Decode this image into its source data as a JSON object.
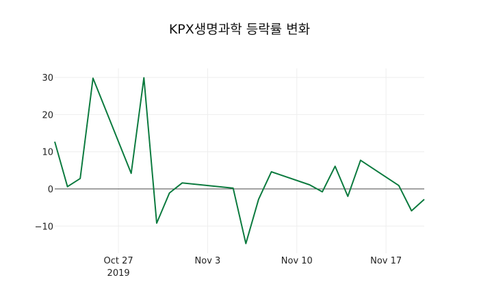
{
  "title": "KPX생명과학 등락률 변화",
  "colors": {
    "line": "#0b7a3e",
    "grid": "#eeeeee",
    "zeroline": "#444444",
    "background": "#ffffff"
  },
  "chart_data": {
    "type": "line",
    "title": "KPX생명과학 등락률 변화",
    "xlabel": "",
    "ylabel": "",
    "x": [
      "2019-10-22",
      "2019-10-23",
      "2019-10-24",
      "2019-10-25",
      "2019-10-28",
      "2019-10-29",
      "2019-10-30",
      "2019-10-31",
      "2019-11-01",
      "2019-11-05",
      "2019-11-06",
      "2019-11-07",
      "2019-11-08",
      "2019-11-11",
      "2019-11-12",
      "2019-11-13",
      "2019-11-14",
      "2019-11-15",
      "2019-11-18",
      "2019-11-19",
      "2019-11-20"
    ],
    "series": [
      {
        "name": "등락률",
        "values": [
          12.7,
          0.6,
          2.8,
          29.8,
          4.2,
          29.9,
          -9.2,
          -1.1,
          1.6,
          0.2,
          -14.7,
          -2.8,
          4.6,
          1.1,
          -0.8,
          6.1,
          -2.0,
          7.7,
          0.9,
          -5.9,
          -2.8
        ]
      }
    ],
    "yticks": [
      30,
      20,
      10,
      0,
      -10
    ],
    "ytick_labels": [
      "30",
      "20",
      "10",
      "0",
      "−10"
    ],
    "xticks": [
      "2019-10-27",
      "2019-11-03",
      "2019-11-10",
      "2019-11-17"
    ],
    "xtick_labels": [
      "Oct 27",
      "Nov 3",
      "Nov 10",
      "Nov 17"
    ],
    "xtick_sublabel": "2019",
    "ylim": [
      -16.5,
      32
    ],
    "xlim": [
      "2019-10-22",
      "2019-11-20"
    ],
    "grid": true,
    "legend": false
  }
}
